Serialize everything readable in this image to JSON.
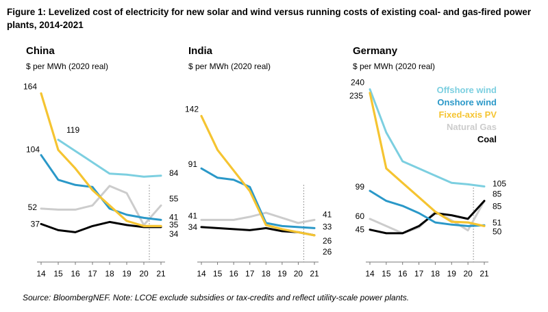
{
  "figure": {
    "title": "Figure 1: Levelized cost of electricity for new solar and wind versus running costs of existing coal- and gas-fired power plants, 2014-2021",
    "source": "Source: BloombergNEF. Note: LCOE exclude subsidies or tax-credits and reflect utility-scale power plants."
  },
  "colors": {
    "offshore": "#7ccfe0",
    "onshore": "#2a98c8",
    "pv": "#f5c431",
    "gas": "#cccccc",
    "coal": "#000000",
    "guide": "#999999"
  },
  "chart_data": [
    {
      "type": "line",
      "panel": "China",
      "unit_label": "$ per MWh (2020 real)",
      "x": [
        14,
        15,
        16,
        17,
        18,
        19,
        20,
        21
      ],
      "ylim": [
        0,
        175
      ],
      "series": [
        {
          "key": "offshore",
          "name": "Offshore wind",
          "values": [
            null,
            119,
            108,
            97,
            86,
            85,
            83,
            84
          ]
        },
        {
          "key": "onshore",
          "name": "Onshore wind",
          "values": [
            104,
            80,
            75,
            73,
            52,
            46,
            43,
            41
          ]
        },
        {
          "key": "pv",
          "name": "Fixed-axis PV",
          "values": [
            164,
            109,
            91,
            70,
            55,
            40,
            35,
            35
          ]
        },
        {
          "key": "gas",
          "name": "Natural Gas",
          "values": [
            52,
            51,
            51,
            55,
            74,
            67,
            36,
            55
          ]
        },
        {
          "key": "coal",
          "name": "Coal",
          "values": [
            37,
            31,
            29,
            35,
            39,
            36,
            34,
            34
          ]
        }
      ],
      "labels": [
        {
          "text": "164",
          "series": "pv",
          "i": 0
        },
        {
          "text": "119",
          "series": "offshore",
          "i": 1
        },
        {
          "text": "104",
          "series": "onshore",
          "i": 0
        },
        {
          "text": "52",
          "series": "gas",
          "i": 0
        },
        {
          "text": "37",
          "series": "coal",
          "i": 0
        },
        {
          "text": "84",
          "series": "offshore",
          "i": 7
        },
        {
          "text": "55",
          "series": "gas",
          "i": 7
        },
        {
          "text": "41",
          "series": "onshore",
          "i": 7
        },
        {
          "text": "35",
          "series": "pv",
          "i": 7
        },
        {
          "text": "34",
          "series": "coal",
          "i": 7
        }
      ]
    },
    {
      "type": "line",
      "panel": "India",
      "unit_label": "$ per MWh (2020 real)",
      "x": [
        14,
        15,
        16,
        17,
        18,
        19,
        20,
        21
      ],
      "ylim": [
        0,
        175
      ],
      "series": [
        {
          "key": "onshore",
          "name": "Onshore wind",
          "values": [
            91,
            82,
            80,
            73,
            38,
            35,
            34,
            33
          ]
        },
        {
          "key": "pv",
          "name": "Fixed-axis PV",
          "values": [
            142,
            109,
            89,
            69,
            36,
            32,
            29,
            26
          ]
        },
        {
          "key": "gas",
          "name": "Natural Gas",
          "values": [
            41,
            41,
            41,
            44,
            48,
            43,
            38,
            41
          ]
        },
        {
          "key": "coal",
          "name": "Coal",
          "values": [
            34,
            33,
            32,
            31,
            33,
            30,
            29,
            26
          ]
        }
      ],
      "labels": [
        {
          "text": "142",
          "series": "pv",
          "i": 0
        },
        {
          "text": "91",
          "series": "onshore",
          "i": 0
        },
        {
          "text": "41",
          "series": "gas",
          "i": 0
        },
        {
          "text": "34",
          "series": "coal",
          "i": 0
        },
        {
          "text": "41",
          "series": "gas",
          "i": 7
        },
        {
          "text": "33",
          "series": "onshore",
          "i": 7
        },
        {
          "text": "26",
          "series": "pv",
          "i": 7
        },
        {
          "text": "26",
          "series": "coal",
          "i": 7
        }
      ]
    },
    {
      "type": "line",
      "panel": "Germany",
      "unit_label": "$ per MWh (2020 real)",
      "x": [
        14,
        15,
        16,
        17,
        18,
        19,
        20,
        21
      ],
      "ylim": [
        0,
        250
      ],
      "series": [
        {
          "key": "offshore",
          "name": "Offshore wind",
          "values": [
            240,
            180,
            140,
            130,
            120,
            110,
            108,
            105
          ]
        },
        {
          "key": "onshore",
          "name": "Onshore wind",
          "values": [
            99,
            85,
            78,
            68,
            55,
            52,
            50,
            51
          ]
        },
        {
          "key": "pv",
          "name": "Fixed-axis PV",
          "values": [
            235,
            130,
            110,
            90,
            70,
            56,
            55,
            50
          ]
        },
        {
          "key": "gas",
          "name": "Natural Gas",
          "values": [
            60,
            50,
            40,
            48,
            70,
            58,
            44,
            85
          ]
        },
        {
          "key": "coal",
          "name": "Coal",
          "values": [
            45,
            40,
            40,
            50,
            68,
            65,
            60,
            85
          ]
        }
      ],
      "labels": [
        {
          "text": "240",
          "series": "offshore",
          "i": 0
        },
        {
          "text": "235",
          "series": "pv",
          "i": 0
        },
        {
          "text": "99",
          "series": "onshore",
          "i": 0
        },
        {
          "text": "60",
          "series": "gas",
          "i": 0
        },
        {
          "text": "45",
          "series": "coal",
          "i": 0
        },
        {
          "text": "105",
          "series": "offshore",
          "i": 7
        },
        {
          "text": "85",
          "series": "gas",
          "i": 7
        },
        {
          "text": "85",
          "series": "coal",
          "i": 7
        },
        {
          "text": "51",
          "series": "onshore",
          "i": 7
        },
        {
          "text": "50",
          "series": "pv",
          "i": 7
        }
      ],
      "legend": [
        {
          "key": "offshore",
          "text": "Offshore wind"
        },
        {
          "key": "onshore",
          "text": "Onshore wind"
        },
        {
          "key": "pv",
          "text": "Fixed-axis PV"
        },
        {
          "key": "gas",
          "text": "Natural Gas"
        },
        {
          "key": "coal",
          "text": "Coal"
        }
      ]
    }
  ]
}
